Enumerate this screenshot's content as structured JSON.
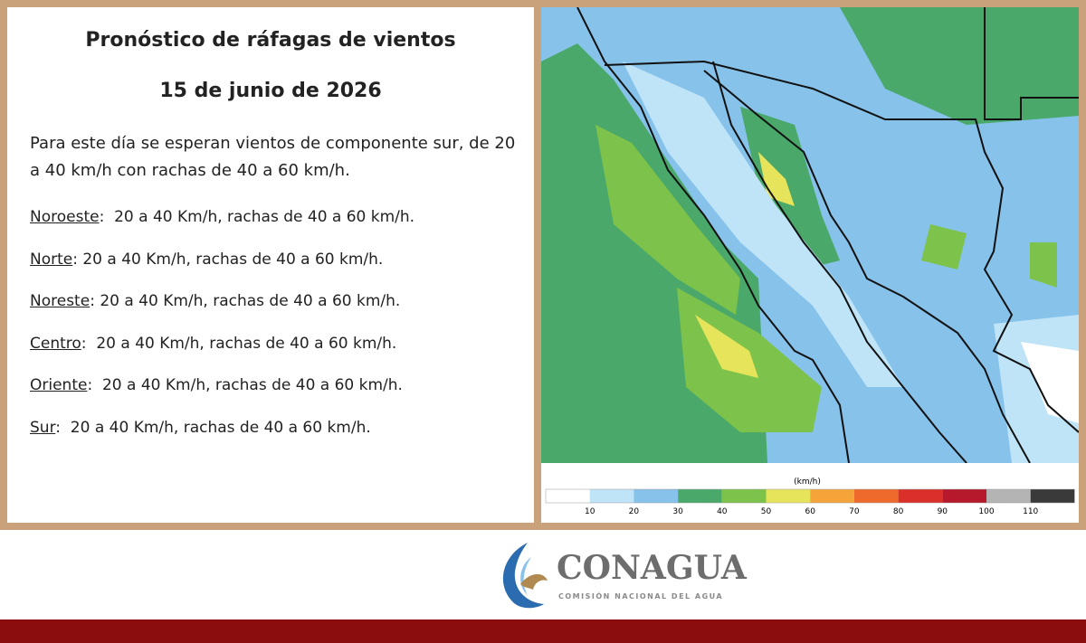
{
  "header": {
    "title": "Pronóstico de ráfagas de vientos",
    "date": "15 de junio de 2026"
  },
  "intro": "Para este día se esperan vientos de componente sur, de 20 a 40 km/h con rachas de 40 a 60 km/h.",
  "regions": [
    {
      "name": "Noroeste",
      "text": ":  20 a 40 Km/h, rachas de 40 a 60 km/h."
    },
    {
      "name": "Norte",
      "text": ": 20 a 40 Km/h, rachas de 40 a 60 km/h."
    },
    {
      "name": "Noreste",
      "text": ": 20 a 40 Km/h, rachas de 40 a 60 km/h."
    },
    {
      "name": "Centro",
      "text": ":  20 a 40 Km/h, rachas de 40 a 60 km/h."
    },
    {
      "name": "Oriente",
      "text": ":  20 a 40 Km/h, rachas de 40 a 60 km/h."
    },
    {
      "name": "Sur",
      "text": ":  20 a 40 Km/h, rachas de 40 a 60 km/h."
    }
  ],
  "legend": {
    "unit": "(km/h)",
    "colors": [
      "#ffffff",
      "#bfe3f7",
      "#86c2ea",
      "#4ba86b",
      "#7dc24a",
      "#e6e45a",
      "#f5a43a",
      "#ee6a2c",
      "#d9302a",
      "#b5192b",
      "#b4b4b4",
      "#3a3a3a"
    ],
    "ticks": [
      10,
      20,
      30,
      40,
      50,
      60,
      70,
      80,
      90,
      100,
      110
    ]
  },
  "logo": {
    "name": "CONAGUA",
    "subtitle": "COMISIÓN NACIONAL DEL AGUA"
  }
}
